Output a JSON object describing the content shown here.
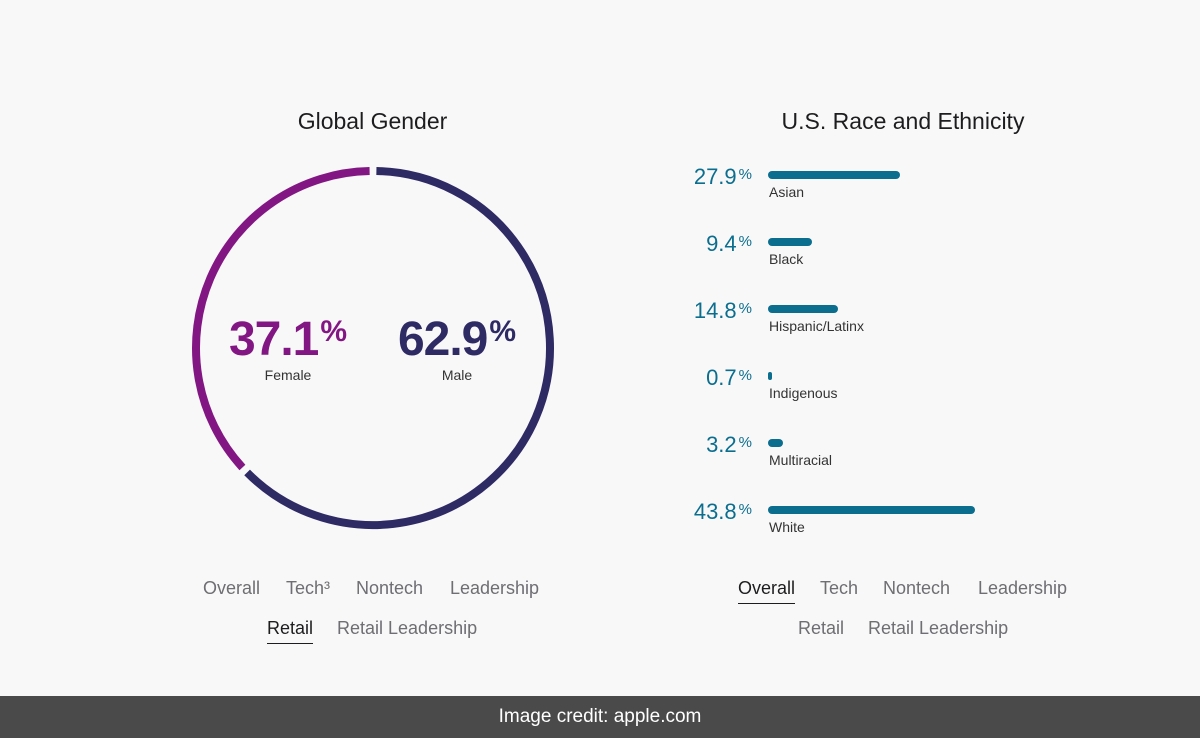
{
  "chart_data": [
    {
      "type": "pie",
      "style": "donut",
      "title": "Global Gender",
      "categories": [
        "Female",
        "Male"
      ],
      "values": [
        37.1,
        62.9
      ],
      "colors": [
        "#821783",
        "#2e2a64"
      ]
    },
    {
      "type": "bar",
      "orientation": "horizontal",
      "title": "U.S. Race and Ethnicity",
      "categories": [
        "Asian",
        "Black",
        "Hispanic/Latinx",
        "Indigenous",
        "Multiracial",
        "White"
      ],
      "values": [
        27.9,
        9.4,
        14.8,
        0.7,
        3.2,
        43.8
      ],
      "unit": "%",
      "color": "#0b6e8f"
    }
  ],
  "gender": {
    "title": "Global Gender",
    "female": {
      "value": "37.1",
      "pct": "%",
      "label": "Female"
    },
    "male": {
      "value": "62.9",
      "pct": "%",
      "label": "Male"
    },
    "tabs": [
      {
        "label": "Overall",
        "active": false
      },
      {
        "label": "Tech³",
        "active": false
      },
      {
        "label": "Nontech",
        "active": false
      },
      {
        "label": "Leadership",
        "active": false
      },
      {
        "label": "Retail",
        "active": true
      },
      {
        "label": "Retail Leadership",
        "active": false
      }
    ]
  },
  "race": {
    "title": "U.S. Race and Ethnicity",
    "rows": [
      {
        "value": "27.9",
        "pct": "%",
        "label": "Asian"
      },
      {
        "value": "9.4",
        "pct": "%",
        "label": "Black"
      },
      {
        "value": "14.8",
        "pct": "%",
        "label": "Hispanic/Latinx"
      },
      {
        "value": "0.7",
        "pct": "%",
        "label": "Indigenous"
      },
      {
        "value": "3.2",
        "pct": "%",
        "label": "Multiracial"
      },
      {
        "value": "43.8",
        "pct": "%",
        "label": "White"
      }
    ],
    "tabs": [
      {
        "label": "Overall",
        "active": true
      },
      {
        "label": "Tech",
        "active": false
      },
      {
        "label": "Nontech",
        "active": false
      },
      {
        "label": "Leadership",
        "active": false
      },
      {
        "label": "Retail",
        "active": false
      },
      {
        "label": "Retail Leadership",
        "active": false
      }
    ]
  },
  "footer": {
    "credit": "Image credit: apple.com"
  }
}
